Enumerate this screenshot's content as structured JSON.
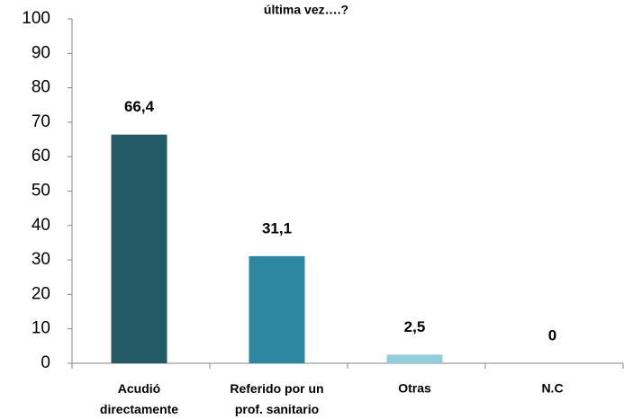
{
  "chart_data": {
    "type": "bar",
    "title": "última vez….?",
    "categories": [
      "Acudió directamente",
      "Referido por un prof. sanitario",
      "Otras",
      "N.C"
    ],
    "values": [
      66.4,
      31.1,
      2.5,
      0
    ],
    "value_labels": [
      "66,4",
      "31,1",
      "2,5",
      "0"
    ],
    "colors": [
      "#245a66",
      "#2e87a0",
      "#92cddc",
      "#92cddc"
    ],
    "ylim": [
      0,
      100
    ],
    "yticks": [
      0,
      10,
      20,
      30,
      40,
      50,
      60,
      70,
      80,
      90,
      100
    ],
    "grid": false
  }
}
